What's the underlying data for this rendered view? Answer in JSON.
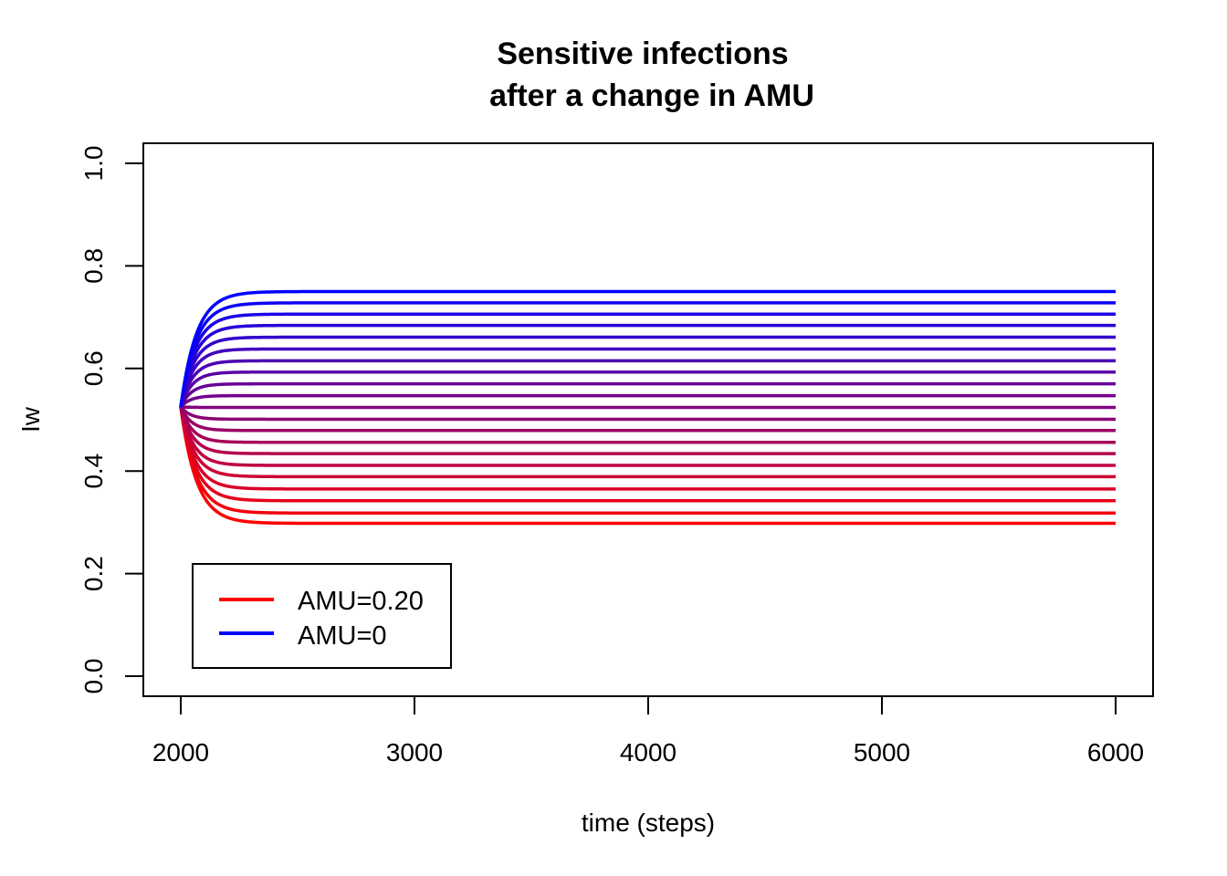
{
  "chart_data": {
    "type": "line",
    "title": [
      "Sensitive infections",
      "after a change in AMU"
    ],
    "xlabel": "time (steps)",
    "ylabel": "Iw",
    "xlim": [
      2000,
      6000
    ],
    "ylim": [
      0.0,
      1.0
    ],
    "x_ticks": [
      2000,
      3000,
      4000,
      5000,
      6000
    ],
    "y_ticks": [
      0.0,
      0.2,
      0.4,
      0.6,
      0.8,
      1.0
    ],
    "y_tick_labels": [
      "0.0",
      "0.2",
      "0.4",
      "0.6",
      "0.8",
      "1.0"
    ],
    "grid": false,
    "start": {
      "x": 2000,
      "y": 0.525
    },
    "series_color_range": {
      "from": "#ff0000",
      "to": "#0000ff"
    },
    "series_steady_state": [
      0.298,
      0.318,
      0.342,
      0.365,
      0.389,
      0.411,
      0.434,
      0.456,
      0.479,
      0.501,
      0.524,
      0.547,
      0.57,
      0.593,
      0.615,
      0.638,
      0.661,
      0.684,
      0.706,
      0.728,
      0.75
    ],
    "legend": {
      "position": "bottom-left",
      "entries": [
        {
          "label": "AMU=0.20",
          "color": "#ff0000"
        },
        {
          "label": "AMU=0",
          "color": "#0000ff"
        }
      ]
    }
  }
}
